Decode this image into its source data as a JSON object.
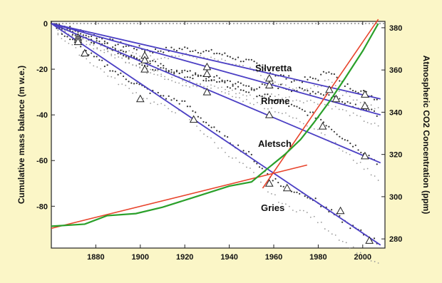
{
  "chart_data": {
    "type": "line",
    "title": "",
    "xlabel": "",
    "ylabel_left": "Cumulative mass balance  (m w.e.)",
    "ylabel_right": "Atmospheric CO2 Concentration (ppm)",
    "xlim": [
      1860,
      2010
    ],
    "ylim_left": [
      -98,
      0
    ],
    "ylim_right": [
      276,
      382
    ],
    "x_ticks": [
      "1880",
      "1900",
      "1920",
      "1940",
      "1960",
      "1980",
      "2000"
    ],
    "y_ticks_left": [
      "0",
      "-20",
      "-40",
      "-60",
      "-80"
    ],
    "y_ticks_right": [
      "380",
      "360",
      "340",
      "320",
      "300",
      "280"
    ],
    "grid": false,
    "zero_line": "dotted",
    "colors": {
      "background": "#fbf6c7",
      "plot_background": "#ffffff",
      "trend_lines": "#4b3fc4",
      "co2_line": "#2aa02a",
      "co2_fit": "#e8442c",
      "glacier_points": "#333333",
      "faint_points": "#9a9a9a"
    },
    "series": [
      {
        "name": "Silvretta",
        "x": [
          1860,
          1875,
          1890,
          1905,
          1920,
          1935,
          1950,
          1960,
          1970,
          1980,
          1985,
          1990,
          2000,
          2007
        ],
        "y": [
          0,
          -4,
          -9,
          -12,
          -11,
          -13,
          -17,
          -22,
          -25,
          -24,
          -20,
          -26,
          -30,
          -33
        ]
      },
      {
        "name": "Rhone",
        "x": [
          1860,
          1875,
          1890,
          1905,
          1920,
          1935,
          1950,
          1960,
          1970,
          1980,
          1990,
          2000,
          2007
        ],
        "y": [
          0,
          -6,
          -12,
          -17,
          -23,
          -24,
          -28,
          -27,
          -29,
          -30,
          -33,
          -37,
          -40
        ]
      },
      {
        "name": "Aletsch",
        "x": [
          1860,
          1875,
          1890,
          1905,
          1920,
          1935,
          1950,
          1960,
          1970,
          1980,
          1990,
          2000,
          2007
        ],
        "y": [
          0,
          -5,
          -12,
          -19,
          -21,
          -26,
          -30,
          -33,
          -37,
          -41,
          -49,
          -56,
          -61
        ]
      },
      {
        "name": "Gries",
        "x": [
          1860,
          1875,
          1890,
          1905,
          1920,
          1935,
          1950,
          1955,
          1965,
          1975,
          1985,
          1995,
          2007
        ],
        "y": [
          0,
          -12,
          -22,
          -30,
          -35,
          -48,
          -58,
          -64,
          -72,
          -75,
          -82,
          -89,
          -96
        ]
      }
    ],
    "trend_lines": [
      {
        "x": [
          1860,
          2008
        ],
        "y": [
          0,
          -33
        ]
      },
      {
        "x": [
          1860,
          2008
        ],
        "y": [
          0,
          -40
        ]
      },
      {
        "x": [
          1860,
          2008
        ],
        "y": [
          0,
          -61
        ]
      },
      {
        "x": [
          1860,
          2008
        ],
        "y": [
          0,
          -97
        ]
      }
    ],
    "markers": [
      {
        "x": [
          1872,
          1902,
          1930,
          1958,
          1985,
          2001
        ],
        "y": [
          -6,
          -14,
          -19,
          -24,
          -29,
          -31
        ]
      },
      {
        "x": [
          1872,
          1902,
          1930,
          1958,
          1988,
          2001
        ],
        "y": [
          -7,
          -16,
          -22,
          -27,
          -33,
          -36
        ]
      },
      {
        "x": [
          1872,
          1902,
          1930,
          1958,
          1982,
          2001
        ],
        "y": [
          -8,
          -20,
          -30,
          -40,
          -45,
          -58
        ]
      },
      {
        "x": [
          1875,
          1900,
          1924,
          1958,
          1966,
          1990,
          2003
        ],
        "y": [
          -13,
          -33,
          -42,
          -70,
          -72,
          -82,
          -95
        ]
      }
    ],
    "co2": {
      "axis": "right",
      "x": [
        1860,
        1875,
        1885,
        1898,
        1910,
        1925,
        1940,
        1950,
        1958,
        1965,
        1972,
        1978,
        1985,
        1992,
        2000,
        2007
      ],
      "y": [
        286,
        287,
        291,
        292,
        295,
        300,
        305,
        307,
        314,
        320,
        327,
        335,
        345,
        356,
        369,
        382
      ]
    },
    "co2_fits": [
      {
        "axis": "right",
        "x": [
          1860,
          1975
        ],
        "y": [
          285,
          315
        ]
      },
      {
        "axis": "right",
        "x": [
          1955,
          2007
        ],
        "y": [
          304,
          384
        ]
      }
    ]
  }
}
